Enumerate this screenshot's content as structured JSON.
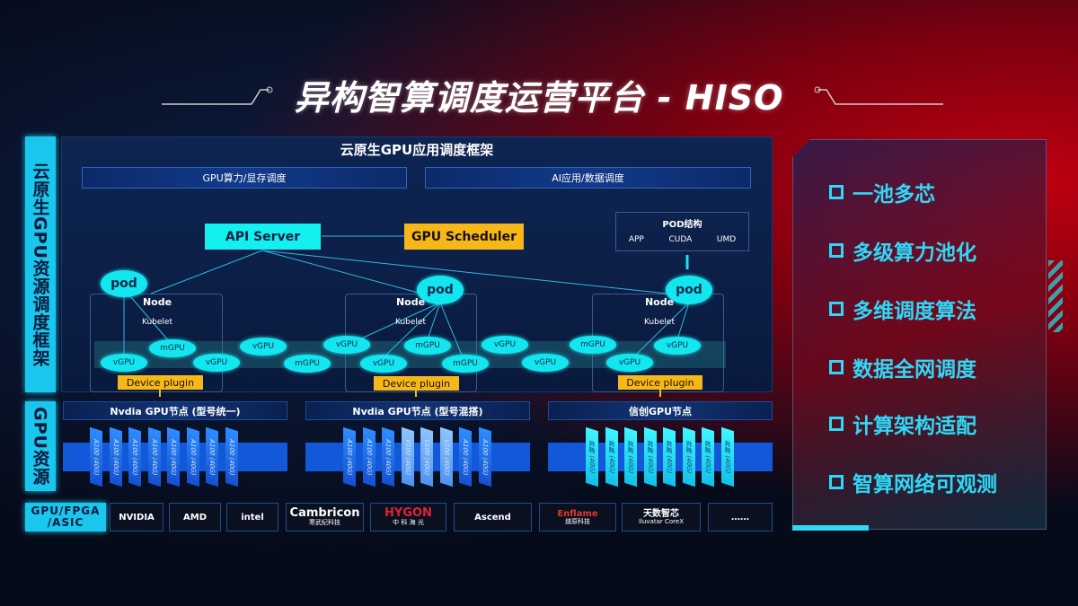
{
  "title": "异构智算调度运营平台 - HISO",
  "side_labels": {
    "framework": "云原生GPU资源调度框架",
    "gpu_resources": "GPU资源",
    "chips": "GPU/FPGA /ASIC"
  },
  "framework": {
    "title": "云原生GPU应用调度框架",
    "bars": [
      "GPU算力/显存调度",
      "AI应用/数据调度"
    ],
    "api_server": "API Server",
    "gpu_scheduler": "GPU Scheduler",
    "pod_structure": {
      "title": "POD结构",
      "items": [
        "APP",
        "CUDA",
        "UMD"
      ]
    },
    "nodes": [
      {
        "pod": "pod",
        "node": "Node",
        "kubelet": "Kubelet",
        "plugin": "Device plugin"
      },
      {
        "pod": "pod",
        "node": "Node",
        "kubelet": "Kubelet",
        "plugin": "Device plugin"
      },
      {
        "pod": "pod",
        "node": "Node",
        "kubelet": "Kubelet",
        "plugin": "Device plugin"
      }
    ],
    "virtual_gpus": [
      "vGPU",
      "mGPU",
      "vGPU",
      "vGPU",
      "mGPU",
      "vGPU",
      "vGPU",
      "mGPU",
      "mGPU",
      "vGPU",
      "vGPU",
      "mGPU",
      "vGPU",
      "vGPU"
    ]
  },
  "gpu_nodes": [
    {
      "title": "Nvdia GPU节点 (型号统一)",
      "cards": [
        "A100 (40G)",
        "A100 (40G)",
        "A100 (40G)",
        "A100 (40G)",
        "A100 (40G)",
        "A100 (40G)",
        "A100 (40G)",
        "A100 (40G)"
      ]
    },
    {
      "title": "Nvdia GPU节点 (型号混搭)",
      "cards": [
        "A100 (40G)",
        "A100 (40G)",
        "A100 (40G)",
        "V100 (40G)",
        "V100 (40G)",
        "V100 (40G)",
        "A100 (40G)",
        "A100 (40G)"
      ]
    },
    {
      "title": "信创GPU节点",
      "cards": [
        "昇腾 (40G)",
        "昇腾 (40G)",
        "昇腾 (40G)",
        "昇腾 (40G)",
        "昇腾 (40G)",
        "昇腾 (40G)",
        "昇腾 (40G)",
        "昇腾 (40G)"
      ]
    }
  ],
  "vendors": [
    {
      "name": "NVIDIA",
      "sub": ""
    },
    {
      "name": "AMD",
      "sub": ""
    },
    {
      "name": "intel",
      "sub": ""
    },
    {
      "name": "Cambricon",
      "sub": "寒武纪科技"
    },
    {
      "name": "HYGON",
      "sub": "中 科 海 光"
    },
    {
      "name": "Ascend",
      "sub": ""
    },
    {
      "name": "Enflame",
      "sub": "燧原科技"
    },
    {
      "name": "天数智芯",
      "sub": "Iluvatar CoreX"
    },
    {
      "name": "……",
      "sub": ""
    }
  ],
  "features": [
    "一池多芯",
    "多级算力池化",
    "多维调度算法",
    "数据全网调度",
    "计算架构适配",
    "智算网络可观测"
  ],
  "colors": {
    "cyan": "#14f0f0",
    "orange": "#f6b819",
    "blue": "#1358d8",
    "feature_text": "#2fd8f6"
  }
}
